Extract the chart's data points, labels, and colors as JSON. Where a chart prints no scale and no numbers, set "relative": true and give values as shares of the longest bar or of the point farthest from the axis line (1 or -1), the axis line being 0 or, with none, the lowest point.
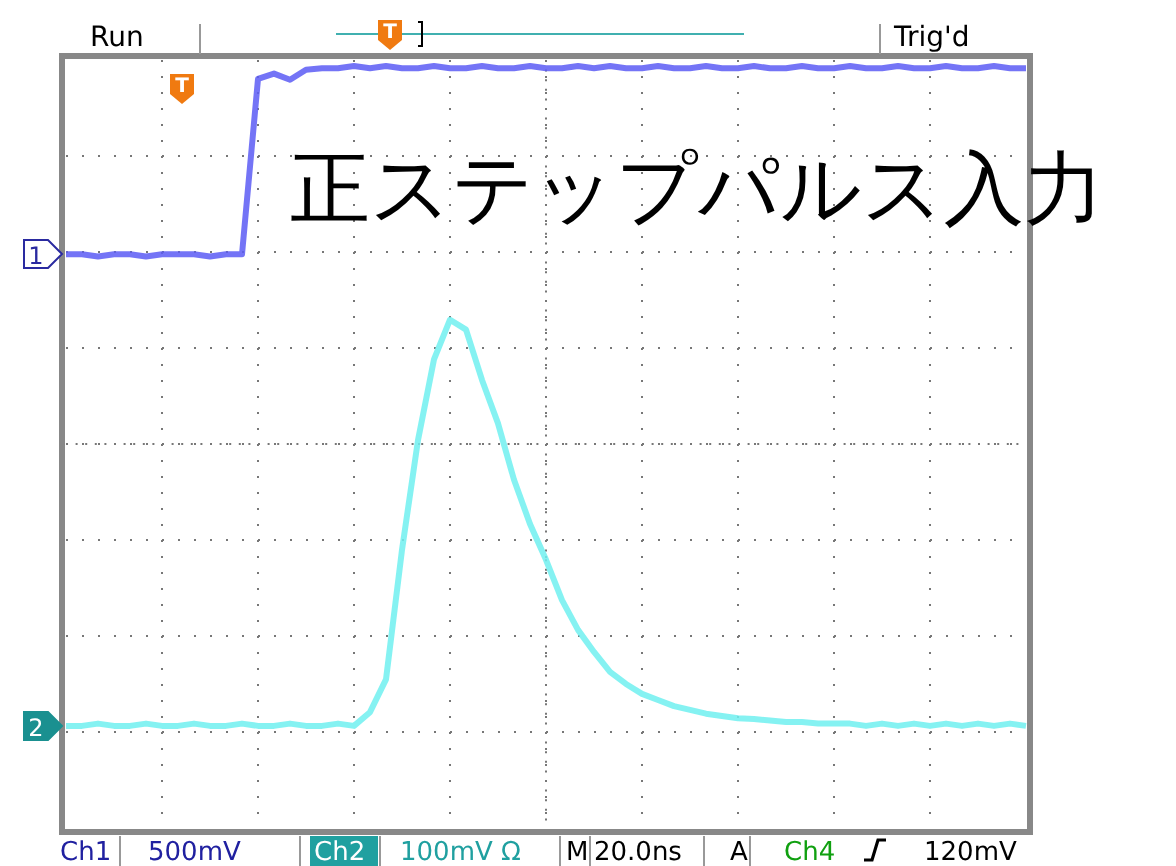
{
  "chart_data": {
    "type": "line",
    "relative": true,
    "grid": true,
    "tick_labels": false,
    "marker": "none",
    "line_style": "solid",
    "categories": [
      null,
      null,
      null,
      null,
      null,
      null,
      null,
      null,
      null,
      null,
      null,
      null,
      null,
      null,
      null,
      null,
      null,
      null,
      null,
      null,
      null,
      null,
      null,
      null,
      null,
      null,
      null,
      null,
      null,
      null,
      null,
      null,
      null,
      null,
      null,
      null,
      null,
      null,
      null,
      null,
      null,
      null,
      null,
      null,
      null,
      null,
      null,
      null,
      null,
      null,
      null,
      null,
      null,
      null,
      null,
      null,
      null,
      null,
      null,
      null,
      null
    ],
    "series": [
      {
        "color": "#5c5cf5",
        "values": [
          0.753,
          0.753,
          0.75,
          0.753,
          0.753,
          0.75,
          0.753,
          0.753,
          0.753,
          0.75,
          0.753,
          0.753,
          0.983,
          0.99,
          0.982,
          0.995,
          0.997,
          0.997,
          1,
          0.997,
          1,
          0.997,
          0.997,
          1,
          0.997,
          0.997,
          1,
          0.997,
          0.997,
          1,
          0.997,
          0.997,
          1,
          0.997,
          1,
          0.997,
          0.997,
          1,
          0.997,
          0.997,
          1,
          0.997,
          0.997,
          1,
          0.997,
          0.997,
          1,
          0.997,
          0.997,
          1,
          0.997,
          0.997,
          1,
          0.997,
          0.997,
          1,
          0.997,
          0.997,
          1,
          0.997,
          0.997
        ]
      },
      {
        "color": "#70f0f0",
        "values": [
          0.134,
          0.134,
          0.137,
          0.134,
          0.134,
          0.137,
          0.134,
          0.134,
          0.137,
          0.134,
          0.134,
          0.137,
          0.134,
          0.134,
          0.137,
          0.134,
          0.134,
          0.137,
          0.134,
          0.152,
          0.195,
          0.365,
          0.509,
          0.615,
          0.667,
          0.654,
          0.588,
          0.531,
          0.457,
          0.399,
          0.352,
          0.299,
          0.26,
          0.231,
          0.205,
          0.189,
          0.176,
          0.168,
          0.16,
          0.155,
          0.15,
          0.147,
          0.144,
          0.143,
          0.141,
          0.139,
          0.139,
          0.137,
          0.137,
          0.137,
          0.134,
          0.137,
          0.134,
          0.137,
          0.134,
          0.137,
          0.134,
          0.137,
          0.134,
          0.137,
          0.134
        ]
      }
    ],
    "annotations": [
      "Run",
      "Trig'd",
      "正ステップパルス入力",
      "Ch1",
      "500mV",
      "Ch2",
      "100mV Ω",
      "M",
      "20.0ns",
      "A",
      "Ch4",
      "120mV",
      "1",
      "2",
      "T",
      "T"
    ]
  }
}
